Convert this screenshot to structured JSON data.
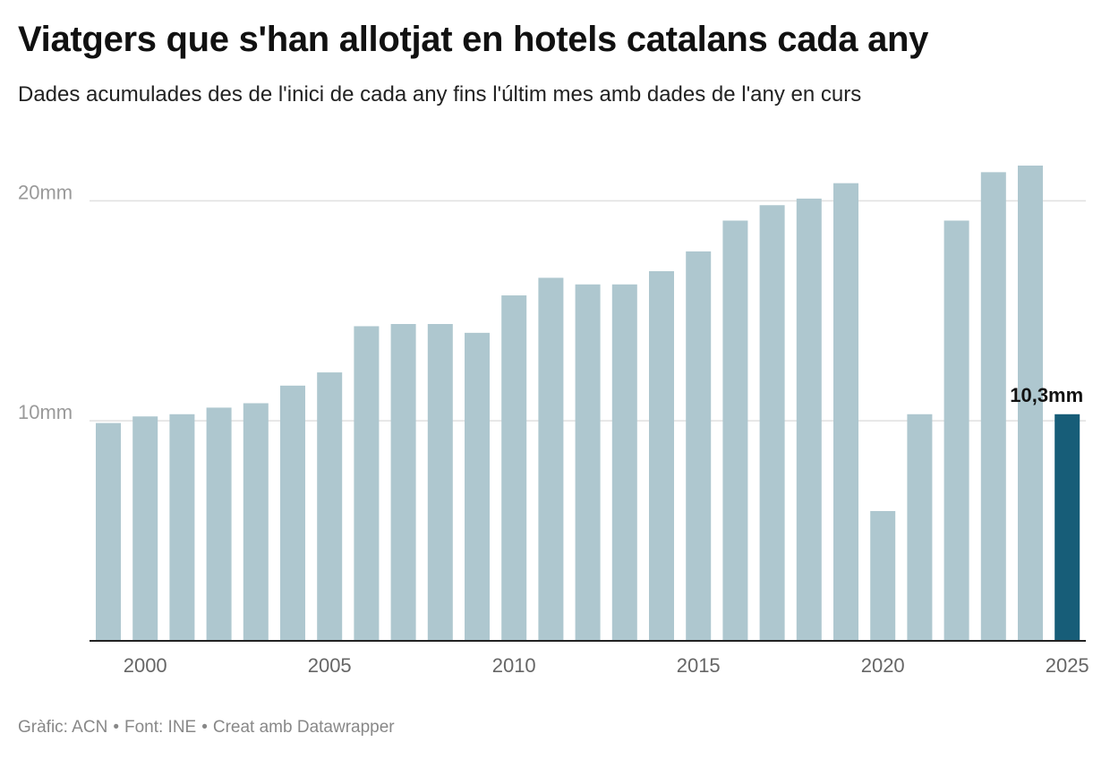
{
  "title": "Viatgers que s'han allotjat en hotels catalans cada any",
  "subtitle": "Dades acumulades des de l'inici de cada any fins l'últim mes amb dades de l'any en curs",
  "footer": {
    "chart_credit": "Gràfic: ACN",
    "source": "Font: INE",
    "tool": "Creat amb Datawrapper",
    "separator": "•"
  },
  "colors": {
    "bar": "#aec7cf",
    "highlight": "#175d78",
    "grid": "#e0e0e0",
    "axis": "#222222",
    "tick_text": "#9a9a9a"
  },
  "chart_data": {
    "type": "bar",
    "title": "Viatgers que s'han allotjat en hotels catalans cada any",
    "subtitle": "Dades acumulades des de l'inici de cada any fins l'últim mes amb dades de l'any en curs",
    "xlabel": "",
    "ylabel": "",
    "categories": [
      1999,
      2000,
      2001,
      2002,
      2003,
      2004,
      2005,
      2006,
      2007,
      2008,
      2009,
      2010,
      2011,
      2012,
      2013,
      2014,
      2015,
      2016,
      2017,
      2018,
      2019,
      2020,
      2021,
      2022,
      2023,
      2024,
      2025
    ],
    "values": [
      9.9,
      10.2,
      10.3,
      10.6,
      10.8,
      11.6,
      12.2,
      14.3,
      14.4,
      14.4,
      14.0,
      15.7,
      16.5,
      16.2,
      16.2,
      16.8,
      17.7,
      19.1,
      19.8,
      20.1,
      20.8,
      5.9,
      10.3,
      19.1,
      21.3,
      21.6,
      10.3
    ],
    "highlight_index": 26,
    "highlight_label": "10,3mm",
    "ylim": [
      0,
      21.6
    ],
    "y_ticks": [
      {
        "value": 10,
        "label": "10mm"
      },
      {
        "value": 20,
        "label": "20mm"
      }
    ],
    "x_ticks": [
      {
        "value": 2000,
        "label": "2000"
      },
      {
        "value": 2005,
        "label": "2005"
      },
      {
        "value": 2010,
        "label": "2010"
      },
      {
        "value": 2015,
        "label": "2015"
      },
      {
        "value": 2020,
        "label": "2020"
      },
      {
        "value": 2025,
        "label": "2025"
      }
    ],
    "grid": true
  }
}
